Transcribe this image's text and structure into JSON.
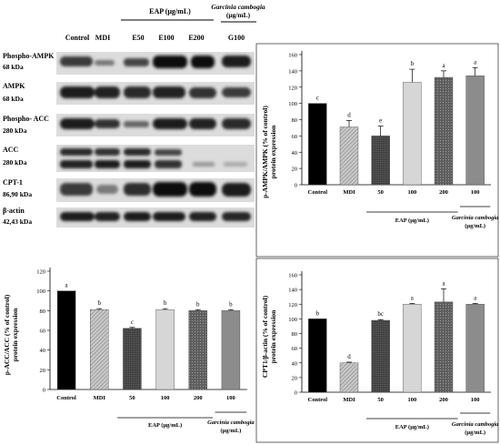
{
  "blot": {
    "header": {
      "lanes": [
        "Control",
        "MDI",
        "E50",
        "E100",
        "E200",
        "G100"
      ],
      "eap_group": "EAP (μg/mL)",
      "gc_group_line1": "Garcinia cambogia",
      "gc_group_line2": "(μg/mL)"
    },
    "rows": [
      {
        "name": "Phospho-AMPK",
        "size": "68 kDa"
      },
      {
        "name": "AMPK",
        "size": "68 kDa"
      },
      {
        "name": "Phospho- ACC",
        "size": "280 kDa"
      },
      {
        "name": "ACC",
        "size": "280 kDa"
      },
      {
        "name": "CPT-1",
        "size": "86,90 kDa"
      },
      {
        "name": "β-actin",
        "size": "42,43 kDa"
      }
    ]
  },
  "chart_data": [
    {
      "type": "bar",
      "ylabel_line1": "p-AMPK/AMPK (% of control)",
      "ylabel_line2": "protein expression",
      "categories": [
        "Control",
        "MDI",
        "50",
        "100",
        "200",
        "100"
      ],
      "values": [
        100,
        71,
        60,
        126,
        132,
        134
      ],
      "errors": [
        0,
        8,
        12,
        16,
        8,
        10
      ],
      "letters": [
        "c",
        "d",
        "e",
        "b",
        "a",
        "a"
      ],
      "yticks": [
        0,
        20,
        40,
        60,
        80,
        100,
        120,
        140,
        160
      ],
      "ylim": [
        0,
        160
      ],
      "group_eap": "EAP (μg/mL)",
      "group_gc_line1": "Garcinia cambogia",
      "group_gc_line2": "(μg/mL)",
      "colors": [
        "#000000",
        "#b0b0b0",
        "#666666",
        "#d0d0d0",
        "#4a4a4a",
        "#8c8c8c"
      ]
    },
    {
      "type": "bar",
      "ylabel_line1": "p-ACC/ACC (% of control)",
      "ylabel_line2": "protein expression",
      "categories": [
        "Control",
        "MDI",
        "50",
        "100",
        "200",
        "100"
      ],
      "values": [
        100,
        81,
        62,
        81,
        80,
        80
      ],
      "errors": [
        0,
        1,
        1,
        1,
        1,
        1
      ],
      "letters": [
        "a",
        "b",
        "c",
        "b",
        "b",
        "b"
      ],
      "yticks": [
        0,
        20,
        40,
        60,
        80,
        100,
        120
      ],
      "ylim": [
        0,
        120
      ],
      "group_eap": "EAP (μg/mL)",
      "group_gc_line1": "Garcinia cambogia",
      "group_gc_line2": "(μg/mL)",
      "colors": [
        "#000000",
        "#b0b0b0",
        "#666666",
        "#d0d0d0",
        "#4a4a4a",
        "#8c8c8c"
      ]
    },
    {
      "type": "bar",
      "ylabel_line1": "CPT1/β-actin (% of control)",
      "ylabel_line2": "protein expression",
      "categories": [
        "Control",
        "MDI",
        "50",
        "100",
        "200",
        "100"
      ],
      "values": [
        100,
        40,
        98,
        120,
        123,
        120
      ],
      "errors": [
        0,
        1,
        1,
        1,
        18,
        1
      ],
      "letters": [
        "b",
        "d",
        "bc",
        "a",
        "a",
        "a"
      ],
      "yticks": [
        0,
        20,
        40,
        60,
        80,
        100,
        120,
        140,
        160
      ],
      "ylim": [
        0,
        160
      ],
      "group_eap": "EAP (μg/mL)",
      "group_gc_line1": "Garcinia cambogia",
      "group_gc_line2": "(μg/mL)",
      "colors": [
        "#000000",
        "#b0b0b0",
        "#666666",
        "#d0d0d0",
        "#4a4a4a",
        "#8c8c8c"
      ]
    }
  ]
}
